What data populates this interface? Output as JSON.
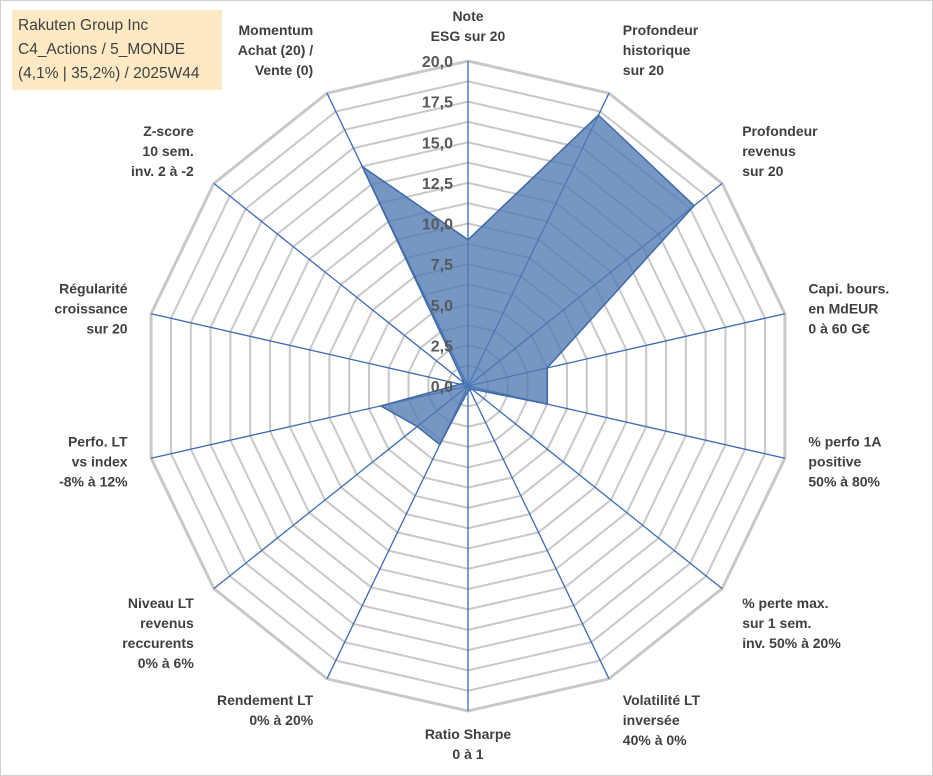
{
  "title_box": {
    "line1": "Rakuten Group Inc",
    "line2": "C4_Actions / 5_MONDE",
    "line3": "(4,1% | 35,2%) / 2025W44"
  },
  "colors": {
    "grid": "#c8c8c8",
    "spoke": "#3b6bb5",
    "fill": "#4f7ab3",
    "stroke": "#3f6aa6",
    "title_bg": "#fde9c4"
  },
  "chart_data": {
    "type": "radar",
    "title": "Rakuten Group Inc",
    "range": [
      0,
      20
    ],
    "ticks": [
      "0,0",
      "2,5",
      "5,0",
      "7,5",
      "10,0",
      "12,5",
      "15,0",
      "17,5",
      "20,0"
    ],
    "axes": [
      {
        "label": [
          "Note",
          "ESG sur 20"
        ],
        "value": 9.0
      },
      {
        "label": [
          "Profondeur",
          "historique",
          "sur 20"
        ],
        "value": 18.5
      },
      {
        "label": [
          "Profondeur",
          "revenus",
          "sur 20"
        ],
        "value": 17.8
      },
      {
        "label": [
          "Capi. bours.",
          "en MdEUR",
          "0 à 60 G€"
        ],
        "value": 5.0
      },
      {
        "label": [
          "% perfo 1A",
          "positive",
          "50% à 80%"
        ],
        "value": 5.0
      },
      {
        "label": [
          "% perte max.",
          "sur 1 sem.",
          "inv. 50% à 20%"
        ],
        "value": 0.3
      },
      {
        "label": [
          "Volatilité LT",
          "inversée",
          "40% à 0%"
        ],
        "value": 0.3
      },
      {
        "label": [
          "Ratio Sharpe",
          "0 à 1"
        ],
        "value": 0.3
      },
      {
        "label": [
          "Rendement LT",
          "0% à 20%"
        ],
        "value": 4.0
      },
      {
        "label": [
          "Niveau LT",
          "revenus",
          "reccurents",
          "0% à 6%"
        ],
        "value": 4.0
      },
      {
        "label": [
          "Perfo. LT",
          "vs index",
          "-8% à 12%"
        ],
        "value": 5.5
      },
      {
        "label": [
          "Régularité",
          "croissance",
          "sur 20"
        ],
        "value": 0.5
      },
      {
        "label": [
          "Z-score",
          "10 sem.",
          "inv. 2 à -2"
        ],
        "value": 0.3
      },
      {
        "label": [
          "Momentum",
          "Achat (20) /",
          "Vente (0)"
        ],
        "value": 15.0
      }
    ]
  }
}
